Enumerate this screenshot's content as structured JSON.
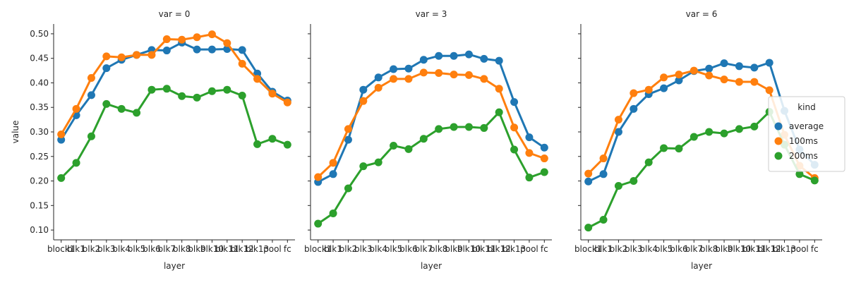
{
  "chart_data": {
    "type": "line",
    "ylabel": "value",
    "xlabel": "layer",
    "ylim": [
      0.08,
      0.52
    ],
    "y_ticks": [
      0.1,
      0.15,
      0.2,
      0.25,
      0.3,
      0.35,
      0.4,
      0.45,
      0.5
    ],
    "categories": [
      "block1",
      "blk1",
      "blk2",
      "blk3",
      "blk4",
      "blk5",
      "blk6",
      "blk7",
      "blk8",
      "blk9",
      "blk10",
      "blk11",
      "blk12",
      "blk13",
      "pool",
      "fc"
    ],
    "category_tick_labels": [
      "block1",
      "blk1",
      "blk2",
      "blk3",
      "blk4",
      "blk5",
      "blk6",
      "blk7",
      "blk8",
      "blk9",
      "blk10",
      "blk11",
      "blk12",
      "blk13",
      "pool",
      "fc"
    ],
    "legend": {
      "title": "kind",
      "placement": "center-right",
      "entries": [
        "average",
        "100ms",
        "200ms"
      ]
    },
    "colors": {
      "average": "#1f77b4",
      "100ms": "#ff7f0e",
      "200ms": "#2ca02c"
    },
    "panels": [
      {
        "title": "var = 0",
        "series": [
          {
            "name": "average",
            "values": [
              0.284,
              0.334,
              0.375,
              0.43,
              0.447,
              0.457,
              0.467,
              0.466,
              0.482,
              0.468,
              0.468,
              0.469,
              0.467,
              0.419,
              0.382,
              0.364
            ]
          },
          {
            "name": "100ms",
            "values": [
              0.295,
              0.347,
              0.41,
              0.454,
              0.452,
              0.457,
              0.457,
              0.489,
              0.488,
              0.493,
              0.499,
              0.481,
              0.439,
              0.408,
              0.378,
              0.36
            ]
          },
          {
            "name": "200ms",
            "values": [
              0.206,
              0.237,
              0.291,
              0.357,
              0.347,
              0.339,
              0.386,
              0.388,
              0.373,
              0.37,
              0.383,
              0.386,
              0.374,
              0.275,
              0.286,
              0.274
            ]
          }
        ]
      },
      {
        "title": "var = 3",
        "series": [
          {
            "name": "average",
            "values": [
              0.198,
              0.214,
              0.284,
              0.386,
              0.411,
              0.428,
              0.429,
              0.447,
              0.455,
              0.455,
              0.458,
              0.449,
              0.445,
              0.361,
              0.289,
              0.268
            ]
          },
          {
            "name": "100ms",
            "values": [
              0.208,
              0.237,
              0.306,
              0.363,
              0.39,
              0.408,
              0.408,
              0.421,
              0.42,
              0.417,
              0.416,
              0.408,
              0.388,
              0.309,
              0.257,
              0.246
            ]
          },
          {
            "name": "200ms",
            "values": [
              0.113,
              0.134,
              0.185,
              0.23,
              0.238,
              0.272,
              0.265,
              0.286,
              0.306,
              0.31,
              0.31,
              0.308,
              0.34,
              0.264,
              0.207,
              0.218
            ]
          }
        ]
      },
      {
        "title": "var = 6",
        "series": [
          {
            "name": "average",
            "values": [
              0.199,
              0.214,
              0.3,
              0.347,
              0.377,
              0.389,
              0.405,
              0.424,
              0.429,
              0.44,
              0.434,
              0.431,
              0.441,
              0.343,
              0.264,
              0.233
            ]
          },
          {
            "name": "100ms",
            "values": [
              0.215,
              0.246,
              0.325,
              0.379,
              0.386,
              0.411,
              0.417,
              0.425,
              0.415,
              0.407,
              0.402,
              0.402,
              0.385,
              0.294,
              0.231,
              0.206
            ]
          },
          {
            "name": "200ms",
            "values": [
              0.105,
              0.121,
              0.19,
              0.2,
              0.238,
              0.267,
              0.266,
              0.29,
              0.3,
              0.297,
              0.306,
              0.311,
              0.341,
              0.274,
              0.214,
              0.201
            ]
          }
        ]
      }
    ]
  }
}
